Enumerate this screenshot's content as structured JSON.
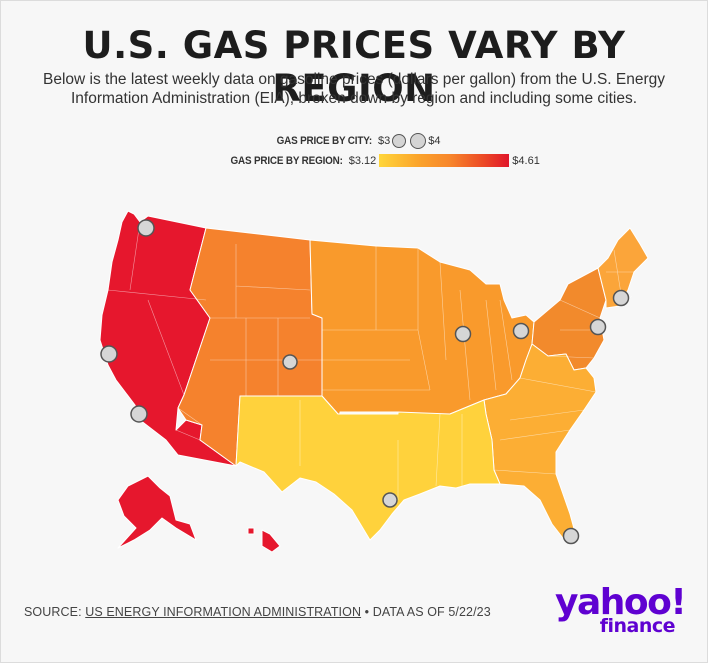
{
  "title": "U.S. GAS PRICES VARY BY REGION",
  "subtitle": "Below is the latest weekly data on gasoline prices (dollars per gallon) from the U.S. Energy Information Administration (EIA), broken down by region and including some cities.",
  "legend": {
    "city_label": "GAS PRICE BY CITY:",
    "city_min": "$3",
    "city_max": "$4",
    "region_label": "GAS PRICE BY REGION:",
    "region_min": "$3.12",
    "region_max": "$4.61"
  },
  "colors": {
    "west_coast": "#e6172d",
    "rocky_mountain": "#f5822d",
    "midwest": "#f99a2c",
    "east_coast_central": "#f28a2c",
    "lower_atlantic": "#fcae34",
    "new_england": "#fba53a",
    "gulf_coast": "#ffd23c",
    "low": "#ffd63a",
    "high": "#e0162b",
    "brand": "#5f01d1"
  },
  "regions": [
    {
      "name": "West Coast",
      "color_key": "west_coast"
    },
    {
      "name": "Rocky Mountain",
      "color_key": "rocky_mountain"
    },
    {
      "name": "Midwest",
      "color_key": "midwest"
    },
    {
      "name": "Central Atlantic",
      "color_key": "east_coast_central"
    },
    {
      "name": "New England",
      "color_key": "new_england"
    },
    {
      "name": "Lower Atlantic",
      "color_key": "lower_atlantic"
    },
    {
      "name": "Gulf Coast",
      "color_key": "gulf_coast"
    }
  ],
  "cities": [
    {
      "id": "seattle"
    },
    {
      "id": "san-francisco"
    },
    {
      "id": "los-angeles"
    },
    {
      "id": "denver"
    },
    {
      "id": "houston"
    },
    {
      "id": "chicago"
    },
    {
      "id": "cleveland"
    },
    {
      "id": "new-york"
    },
    {
      "id": "boston"
    },
    {
      "id": "miami"
    }
  ],
  "source": {
    "prefix": "SOURCE: ",
    "name": "US ENERGY INFORMATION ADMINISTRATION",
    "separator": " • ",
    "date_note": "DATA AS OF 5/22/23"
  },
  "logo": {
    "line1": "yahoo!",
    "line2": "finance"
  }
}
